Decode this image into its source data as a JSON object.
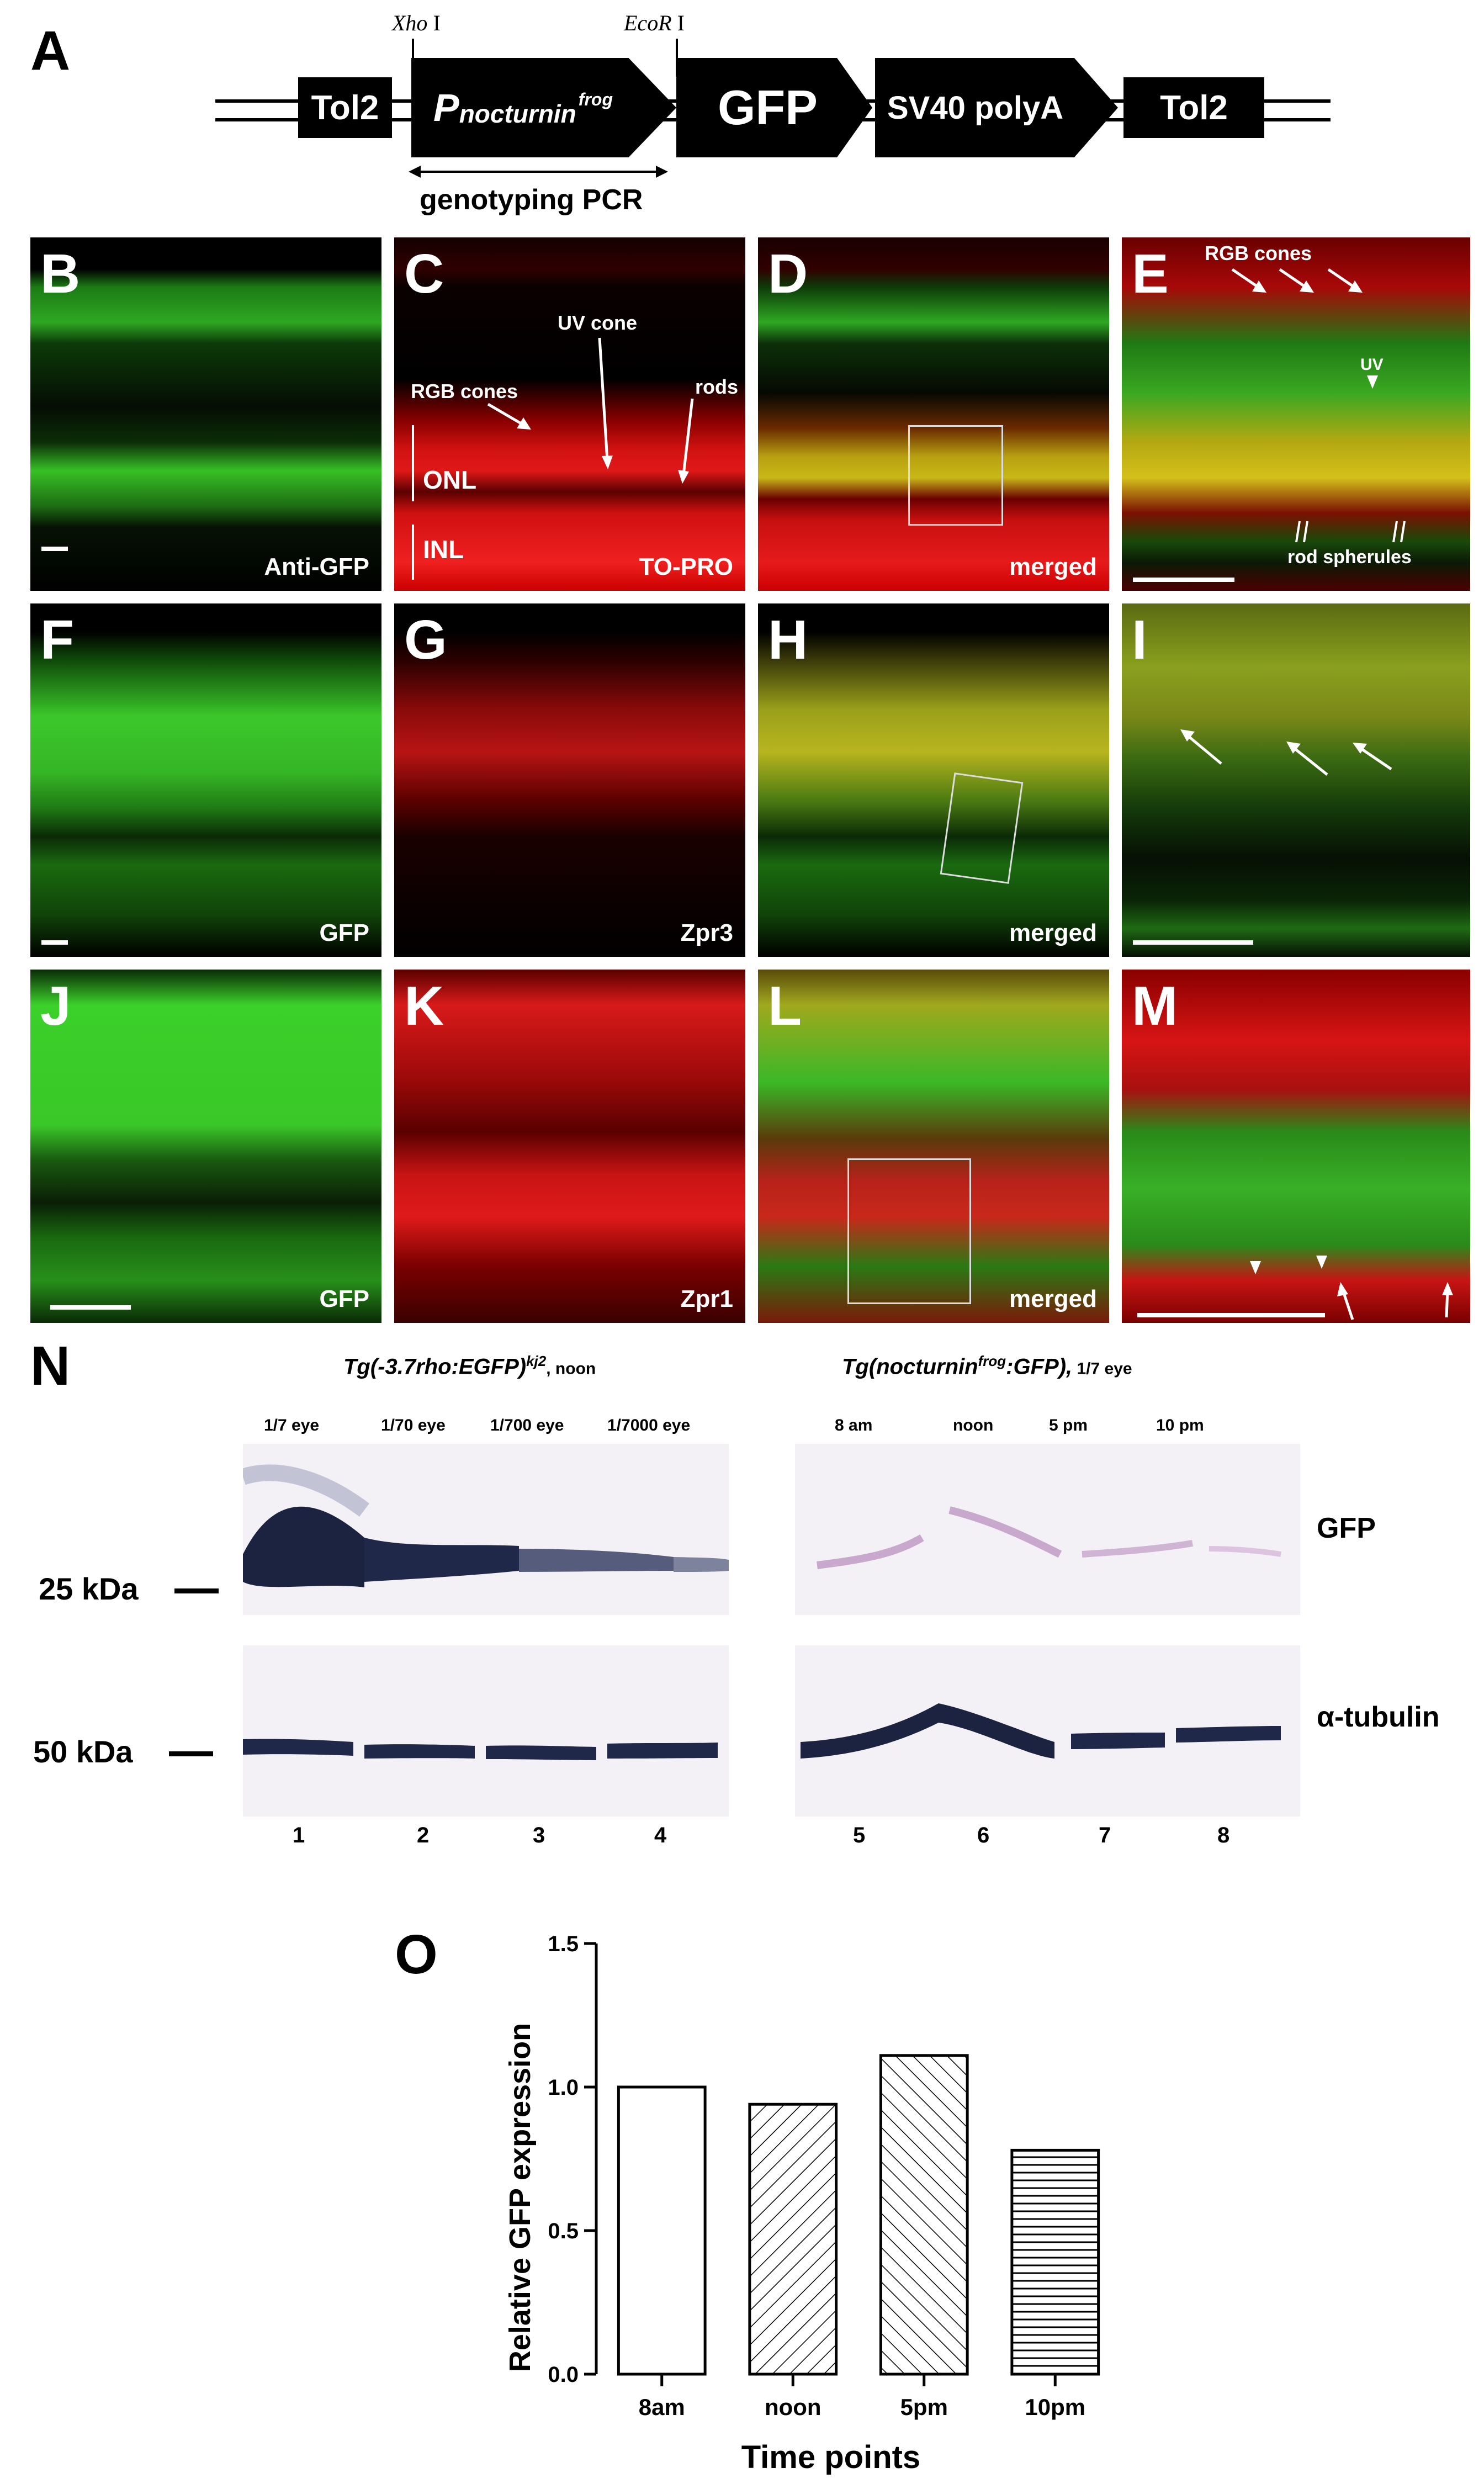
{
  "panel_letters": {
    "A": "A",
    "B": "B",
    "C": "C",
    "D": "D",
    "E": "E",
    "F": "F",
    "G": "G",
    "H": "H",
    "I": "I",
    "J": "J",
    "K": "K",
    "L": "L",
    "M": "M",
    "N": "N",
    "O": "O"
  },
  "construct": {
    "tol2_left": "Tol2",
    "promoter_main": "P",
    "promoter_sub": "nocturnin",
    "promoter_sup": "frog",
    "gfp": "GFP",
    "polya": "SV40 polyA",
    "tol2_right": "Tol2",
    "site1_italic": "Xho",
    "site1_num": " I",
    "site2_italic": "EcoR",
    "site2_num": " I",
    "pcr_label": "genotyping PCR"
  },
  "row1": {
    "B_caption": "Anti-GFP",
    "C_caption": "TO-PRO",
    "D_caption": "merged",
    "C_rgb_cones": "RGB cones",
    "C_uv_cone": "UV cone",
    "C_rods": "rods",
    "C_onl": "ONL",
    "C_inl": "INL",
    "E_rgb_cones": "RGB cones",
    "E_uv": "UV",
    "E_rod_spherules": "rod spherules"
  },
  "row2": {
    "F_caption": "GFP",
    "G_caption": "Zpr3",
    "H_caption": "merged"
  },
  "row3": {
    "J_caption": "GFP",
    "K_caption": "Zpr1",
    "L_caption": "merged"
  },
  "blot": {
    "left_title_italic": "Tg(-3.7rho:EGFP)",
    "left_title_sup": "kj2",
    "left_title_suffix": ",  noon",
    "right_title_italic_a": "Tg(nocturnin",
    "right_title_sup": "frog",
    "right_title_italic_b": ":GFP),",
    "right_title_suffix": " 1/7 eye",
    "left_conditions": [
      "1/7 eye",
      "1/70 eye",
      "1/700 eye",
      "1/7000 eye"
    ],
    "right_conditions": [
      "8 am",
      "noon",
      "5 pm",
      "10 pm"
    ],
    "lanes": [
      "1",
      "2",
      "3",
      "4",
      "5",
      "6",
      "7",
      "8"
    ],
    "mw_upper": "25 kDa",
    "mw_lower": "50 kDa",
    "band_gfp": "GFP",
    "band_tubulin": "α-tubulin"
  },
  "chart_data": {
    "type": "bar",
    "categories": [
      "8am",
      "noon",
      "5pm",
      "10pm"
    ],
    "values": [
      1.0,
      0.94,
      1.11,
      0.78
    ],
    "xlabel": "Time points",
    "ylabel": "Relative GFP expression",
    "ylim": [
      0,
      1.5
    ],
    "yticks": [
      "0.0",
      "0.5",
      "1.0",
      "1.5"
    ],
    "patterns": [
      "none",
      "diagonal",
      "diagonal-reverse",
      "horizontal"
    ]
  }
}
